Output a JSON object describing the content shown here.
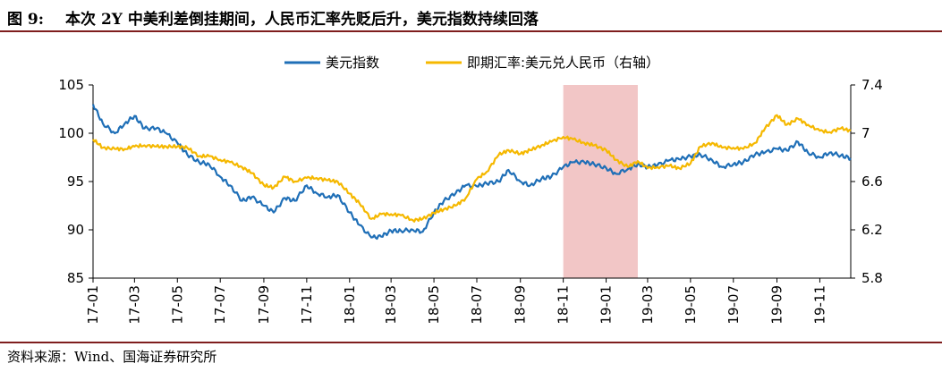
{
  "header": {
    "figure_number": "图 9:",
    "title": "本次 2Y 中美利差倒挂期间，人民币汇率先贬后升，美元指数持续回落"
  },
  "footer": {
    "source": "资料来源：Wind、国海证券研究所"
  },
  "chart_data": {
    "type": "line",
    "categories": [
      "17-01",
      "17-03",
      "17-05",
      "17-07",
      "17-09",
      "17-11",
      "18-01",
      "18-03",
      "18-05",
      "18-07",
      "18-09",
      "18-11",
      "19-01",
      "19-03",
      "19-05",
      "19-07",
      "19-09",
      "19-11"
    ],
    "x_range": [
      "2017-01-01",
      "2019-12-15"
    ],
    "ylim_left": [
      85,
      105
    ],
    "yticks_left": [
      85,
      90,
      95,
      100,
      105
    ],
    "ylim_right": [
      5.8,
      7.4
    ],
    "yticks_right": [
      "5.8",
      "6.2",
      "6.6",
      "7",
      "7.4"
    ],
    "grid": false,
    "legend_position": "top-center",
    "shaded_period": {
      "start": "2018-11-01",
      "end": "2019-02-15",
      "color": "#f2c6c6"
    },
    "series": [
      {
        "name": "美元指数",
        "axis": "left",
        "color": "#1f6fb7",
        "points": [
          [
            "2017-01-01",
            103.0
          ],
          [
            "2017-01-15",
            101.0
          ],
          [
            "2017-02-01",
            100.0
          ],
          [
            "2017-02-15",
            101.0
          ],
          [
            "2017-03-01",
            101.8
          ],
          [
            "2017-03-15",
            100.5
          ],
          [
            "2017-04-01",
            100.5
          ],
          [
            "2017-04-15",
            100.0
          ],
          [
            "2017-05-01",
            99.0
          ],
          [
            "2017-05-15",
            97.8
          ],
          [
            "2017-06-01",
            97.0
          ],
          [
            "2017-06-15",
            96.8
          ],
          [
            "2017-07-01",
            95.5
          ],
          [
            "2017-07-15",
            94.6
          ],
          [
            "2017-08-01",
            93.0
          ],
          [
            "2017-08-15",
            93.4
          ],
          [
            "2017-09-01",
            92.5
          ],
          [
            "2017-09-15",
            91.8
          ],
          [
            "2017-10-01",
            93.3
          ],
          [
            "2017-10-15",
            93.0
          ],
          [
            "2017-11-01",
            94.6
          ],
          [
            "2017-11-15",
            93.8
          ],
          [
            "2017-12-01",
            93.4
          ],
          [
            "2017-12-15",
            93.6
          ],
          [
            "2018-01-01",
            91.8
          ],
          [
            "2018-01-15",
            90.5
          ],
          [
            "2018-02-01",
            89.2
          ],
          [
            "2018-02-15",
            89.3
          ],
          [
            "2018-03-01",
            89.9
          ],
          [
            "2018-03-15",
            89.9
          ],
          [
            "2018-04-01",
            90.0
          ],
          [
            "2018-04-15",
            89.8
          ],
          [
            "2018-05-01",
            91.8
          ],
          [
            "2018-05-15",
            93.0
          ],
          [
            "2018-06-01",
            93.8
          ],
          [
            "2018-06-15",
            94.6
          ],
          [
            "2018-07-01",
            94.5
          ],
          [
            "2018-07-15",
            94.8
          ],
          [
            "2018-08-01",
            95.0
          ],
          [
            "2018-08-15",
            96.2
          ],
          [
            "2018-09-01",
            95.0
          ],
          [
            "2018-09-15",
            94.6
          ],
          [
            "2018-10-01",
            95.3
          ],
          [
            "2018-10-15",
            95.5
          ],
          [
            "2018-11-01",
            96.5
          ],
          [
            "2018-11-15",
            97.0
          ],
          [
            "2018-12-01",
            97.0
          ],
          [
            "2018-12-15",
            96.8
          ],
          [
            "2019-01-01",
            96.4
          ],
          [
            "2019-01-15",
            95.8
          ],
          [
            "2019-02-01",
            96.3
          ],
          [
            "2019-02-15",
            96.8
          ],
          [
            "2019-03-01",
            96.5
          ],
          [
            "2019-03-15",
            96.7
          ],
          [
            "2019-04-01",
            97.2
          ],
          [
            "2019-04-15",
            97.3
          ],
          [
            "2019-05-01",
            97.6
          ],
          [
            "2019-05-15",
            97.8
          ],
          [
            "2019-06-01",
            97.2
          ],
          [
            "2019-06-15",
            96.5
          ],
          [
            "2019-07-01",
            96.8
          ],
          [
            "2019-07-15",
            97.0
          ],
          [
            "2019-08-01",
            97.8
          ],
          [
            "2019-08-15",
            98.0
          ],
          [
            "2019-09-01",
            98.4
          ],
          [
            "2019-09-15",
            98.2
          ],
          [
            "2019-10-01",
            99.1
          ],
          [
            "2019-10-15",
            98.0
          ],
          [
            "2019-11-01",
            97.5
          ],
          [
            "2019-11-15",
            98.0
          ],
          [
            "2019-12-01",
            97.7
          ],
          [
            "2019-12-15",
            97.4
          ]
        ]
      },
      {
        "name": "即期汇率:美元兑人民币（右轴）",
        "axis": "right",
        "color": "#f5b800",
        "points": [
          [
            "2017-01-01",
            6.95
          ],
          [
            "2017-01-15",
            6.88
          ],
          [
            "2017-02-01",
            6.87
          ],
          [
            "2017-02-15",
            6.87
          ],
          [
            "2017-03-01",
            6.89
          ],
          [
            "2017-03-15",
            6.9
          ],
          [
            "2017-04-01",
            6.89
          ],
          [
            "2017-04-15",
            6.89
          ],
          [
            "2017-05-01",
            6.89
          ],
          [
            "2017-05-15",
            6.88
          ],
          [
            "2017-06-01",
            6.81
          ],
          [
            "2017-06-15",
            6.81
          ],
          [
            "2017-07-01",
            6.78
          ],
          [
            "2017-07-15",
            6.76
          ],
          [
            "2017-08-01",
            6.72
          ],
          [
            "2017-08-15",
            6.67
          ],
          [
            "2017-09-01",
            6.57
          ],
          [
            "2017-09-15",
            6.55
          ],
          [
            "2017-10-01",
            6.64
          ],
          [
            "2017-10-15",
            6.6
          ],
          [
            "2017-11-01",
            6.63
          ],
          [
            "2017-11-15",
            6.63
          ],
          [
            "2017-12-01",
            6.61
          ],
          [
            "2017-12-15",
            6.6
          ],
          [
            "2018-01-01",
            6.5
          ],
          [
            "2018-01-15",
            6.42
          ],
          [
            "2018-02-01",
            6.29
          ],
          [
            "2018-02-15",
            6.33
          ],
          [
            "2018-03-01",
            6.33
          ],
          [
            "2018-03-15",
            6.32
          ],
          [
            "2018-04-01",
            6.28
          ],
          [
            "2018-04-15",
            6.29
          ],
          [
            "2018-05-01",
            6.34
          ],
          [
            "2018-05-15",
            6.37
          ],
          [
            "2018-06-01",
            6.4
          ],
          [
            "2018-06-15",
            6.46
          ],
          [
            "2018-07-01",
            6.62
          ],
          [
            "2018-07-15",
            6.68
          ],
          [
            "2018-08-01",
            6.82
          ],
          [
            "2018-08-15",
            6.86
          ],
          [
            "2018-09-01",
            6.83
          ],
          [
            "2018-09-15",
            6.86
          ],
          [
            "2018-10-01",
            6.9
          ],
          [
            "2018-10-15",
            6.93
          ],
          [
            "2018-11-01",
            6.97
          ],
          [
            "2018-11-15",
            6.95
          ],
          [
            "2018-12-01",
            6.92
          ],
          [
            "2018-12-15",
            6.9
          ],
          [
            "2019-01-01",
            6.86
          ],
          [
            "2019-01-15",
            6.78
          ],
          [
            "2019-02-01",
            6.72
          ],
          [
            "2019-02-15",
            6.77
          ],
          [
            "2019-03-01",
            6.71
          ],
          [
            "2019-03-15",
            6.72
          ],
          [
            "2019-04-01",
            6.73
          ],
          [
            "2019-04-15",
            6.71
          ],
          [
            "2019-05-01",
            6.75
          ],
          [
            "2019-05-15",
            6.89
          ],
          [
            "2019-06-01",
            6.92
          ],
          [
            "2019-06-15",
            6.88
          ],
          [
            "2019-07-01",
            6.88
          ],
          [
            "2019-07-15",
            6.87
          ],
          [
            "2019-08-01",
            6.92
          ],
          [
            "2019-08-15",
            7.04
          ],
          [
            "2019-09-01",
            7.15
          ],
          [
            "2019-09-15",
            7.07
          ],
          [
            "2019-10-01",
            7.12
          ],
          [
            "2019-10-15",
            7.07
          ],
          [
            "2019-11-01",
            7.02
          ],
          [
            "2019-11-15",
            7.01
          ],
          [
            "2019-12-01",
            7.04
          ],
          [
            "2019-12-15",
            7.02
          ]
        ]
      }
    ]
  }
}
